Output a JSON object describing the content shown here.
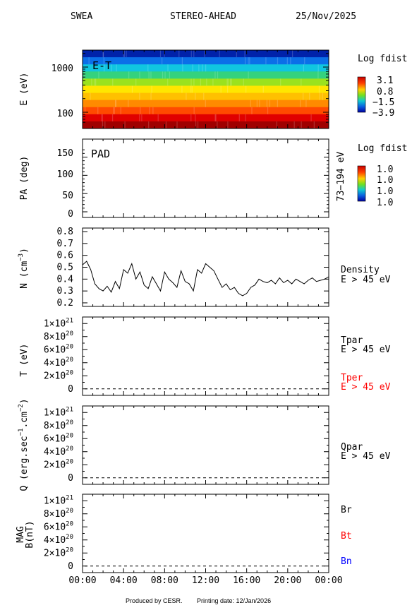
{
  "header": {
    "instrument": "SWEA",
    "spacecraft": "STEREO-AHEAD",
    "date": "25/Nov/2025"
  },
  "footer": {
    "produced_by": "Produced by CESR.",
    "printing_date": "Printing date: 12/Jan/2026"
  },
  "time_axis": {
    "range_hours": [
      0,
      24
    ],
    "ticks": [
      "00:00",
      "04:00",
      "08:00",
      "12:00",
      "16:00",
      "20:00",
      "00:00"
    ]
  },
  "chart_data": [
    {
      "panel": "energy-time",
      "type": "heatmap",
      "title": "E-T",
      "ylabel": "E (eV)",
      "y_scale": "log",
      "y_ticks": [
        1000,
        100
      ],
      "y_tick_labels": [
        "1000",
        "100"
      ],
      "colorbar": {
        "title": "Log fdist",
        "labels": [
          "3.1",
          "0.8",
          "−1.5",
          "−3.9"
        ]
      },
      "energy_band_colors": [
        "#0022aa",
        "#0b6fe8",
        "#10c6e0",
        "#34d27e",
        "#9be21e",
        "#ffe600",
        "#ffc000",
        "#ff8a00",
        "#ff4a00",
        "#e00000",
        "#a00000"
      ]
    },
    {
      "panel": "pitch-angle",
      "type": "heatmap",
      "title": "PAD",
      "ylabel": "PA (deg)",
      "ylim": [
        0,
        180
      ],
      "y_ticks": [
        0,
        50,
        100,
        150
      ],
      "y_tick_labels": [
        "0",
        "50",
        "100",
        "150"
      ],
      "right_label": "73−194 eV",
      "colorbar": {
        "title": "Log fdist",
        "labels": [
          "1.0",
          "1.0",
          "1.0",
          "1.0"
        ]
      }
    },
    {
      "panel": "density",
      "type": "line",
      "ylabel": "N (cm",
      "ylabel_sup": "−3",
      "ylabel_end": ")",
      "ylim": [
        0.17,
        0.83
      ],
      "y_ticks": [
        0.2,
        0.3,
        0.4,
        0.5,
        0.6,
        0.7,
        0.8
      ],
      "y_tick_labels": [
        "0.2",
        "0.3",
        "0.4",
        "0.5",
        "0.6",
        "0.7",
        "0.8"
      ],
      "legend": [
        "Density",
        "E > 45 eV"
      ],
      "x_hours": [
        0,
        0.4,
        0.8,
        1.2,
        1.6,
        2.0,
        2.4,
        2.8,
        3.2,
        3.6,
        4.0,
        4.4,
        4.8,
        5.2,
        5.6,
        6.0,
        6.4,
        6.8,
        7.2,
        7.6,
        8.0,
        8.4,
        8.8,
        9.2,
        9.6,
        10.0,
        10.4,
        10.8,
        11.2,
        11.6,
        12.0,
        12.4,
        12.8,
        13.2,
        13.6,
        14.0,
        14.4,
        14.8,
        15.2,
        15.6,
        16.0,
        16.4,
        16.8,
        17.2,
        17.6,
        18.0,
        18.4,
        18.8,
        19.2,
        19.6,
        20.0,
        20.4,
        20.8,
        21.2,
        21.6,
        22.0,
        22.4,
        22.8,
        23.2,
        23.6,
        24.0
      ],
      "values": [
        0.52,
        0.55,
        0.48,
        0.36,
        0.32,
        0.3,
        0.34,
        0.29,
        0.38,
        0.32,
        0.48,
        0.45,
        0.53,
        0.4,
        0.46,
        0.35,
        0.32,
        0.42,
        0.36,
        0.3,
        0.46,
        0.4,
        0.37,
        0.33,
        0.47,
        0.38,
        0.36,
        0.3,
        0.48,
        0.45,
        0.53,
        0.5,
        0.47,
        0.4,
        0.33,
        0.36,
        0.31,
        0.33,
        0.28,
        0.26,
        0.28,
        0.33,
        0.35,
        0.4,
        0.38,
        0.37,
        0.39,
        0.36,
        0.41,
        0.37,
        0.39,
        0.36,
        0.4,
        0.38,
        0.36,
        0.39,
        0.41,
        0.38,
        0.39,
        0.4,
        0.42
      ]
    },
    {
      "panel": "temperature",
      "type": "line",
      "ylabel": "T (eV)",
      "ylim": [
        -1e+20,
        1.1e+21
      ],
      "y_ticks": [
        0,
        2e+20,
        4e+20,
        6e+20,
        8e+20,
        1e+21
      ],
      "y_tick_labels": [
        {
          "m": "0",
          "e": ""
        },
        {
          "m": "2×10",
          "e": "20"
        },
        {
          "m": "4×10",
          "e": "20"
        },
        {
          "m": "6×10",
          "e": "20"
        },
        {
          "m": "8×10",
          "e": "20"
        },
        {
          "m": "1×10",
          "e": "21"
        }
      ],
      "series": [
        {
          "name": "Tpar",
          "label_extra": "E > 45 eV",
          "color": "#000000"
        },
        {
          "name": "Tper",
          "label_extra": "E > 45 eV",
          "color": "#ff0000"
        }
      ],
      "baseline_value": 0
    },
    {
      "panel": "heat-flux",
      "type": "line",
      "ylabel": "Q (erg.sec",
      "ylabel_sup1": "−1",
      "ylabel_mid": ".cm",
      "ylabel_sup2": "−2",
      "ylabel_end": ")",
      "ylim": [
        -1e+20,
        1.1e+21
      ],
      "y_ticks": [
        0,
        2e+20,
        4e+20,
        6e+20,
        8e+20,
        1e+21
      ],
      "y_tick_labels": [
        {
          "m": "0",
          "e": ""
        },
        {
          "m": "2×10",
          "e": "20"
        },
        {
          "m": "4×10",
          "e": "20"
        },
        {
          "m": "6×10",
          "e": "20"
        },
        {
          "m": "8×10",
          "e": "20"
        },
        {
          "m": "1×10",
          "e": "21"
        }
      ],
      "series": [
        {
          "name": "Qpar",
          "label_extra": "E > 45 eV",
          "color": "#000000"
        }
      ],
      "baseline_value": 0
    },
    {
      "panel": "magnetic-field",
      "type": "line",
      "ylabel_line1": "MAG",
      "ylabel_line2": "B(nT)",
      "ylim": [
        -1e+20,
        1.1e+21
      ],
      "y_ticks": [
        0,
        2e+20,
        4e+20,
        6e+20,
        8e+20,
        1e+21
      ],
      "y_tick_labels": [
        {
          "m": "0",
          "e": ""
        },
        {
          "m": "2×10",
          "e": "20"
        },
        {
          "m": "4×10",
          "e": "20"
        },
        {
          "m": "6×10",
          "e": "20"
        },
        {
          "m": "8×10",
          "e": "20"
        },
        {
          "m": "1×10",
          "e": "21"
        }
      ],
      "series": [
        {
          "name": "Br",
          "color": "#000000"
        },
        {
          "name": "Bt",
          "color": "#ff0000"
        },
        {
          "name": "Bn",
          "color": "#0000ff"
        }
      ],
      "baseline_value": 0
    }
  ]
}
